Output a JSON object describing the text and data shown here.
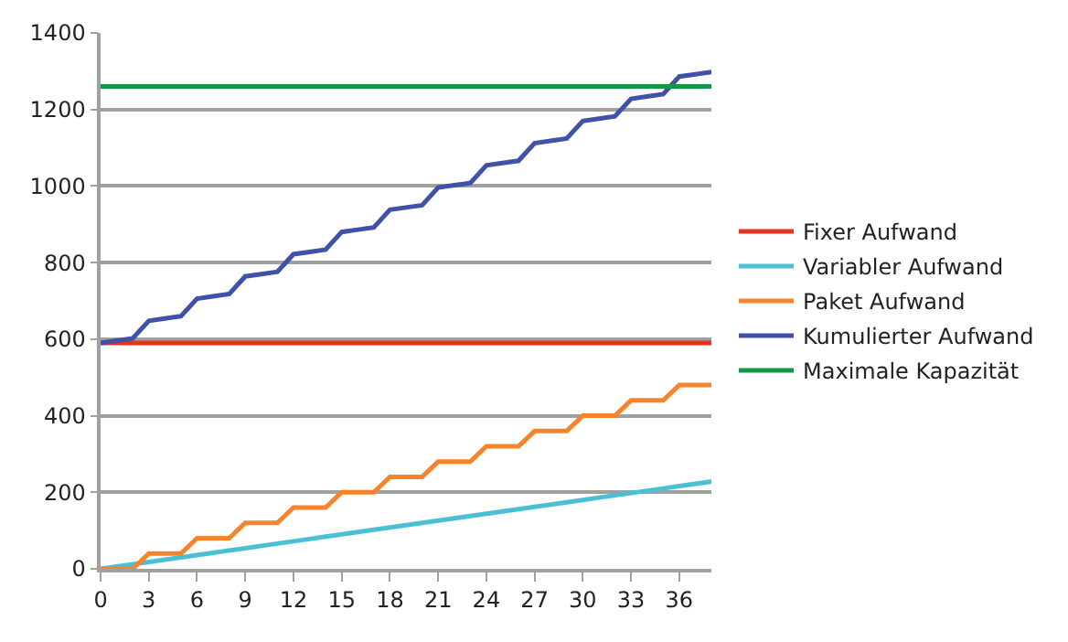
{
  "chart_data": {
    "type": "line",
    "x": [
      0,
      1,
      2,
      3,
      4,
      5,
      6,
      7,
      8,
      9,
      10,
      11,
      12,
      13,
      14,
      15,
      16,
      17,
      18,
      19,
      20,
      21,
      22,
      23,
      24,
      25,
      26,
      27,
      28,
      29,
      30,
      31,
      32,
      33,
      34,
      35,
      36,
      37,
      38
    ],
    "series": [
      {
        "name": "Fixer Aufwand",
        "color": "#e8321e",
        "values": [
          590,
          590,
          590,
          590,
          590,
          590,
          590,
          590,
          590,
          590,
          590,
          590,
          590,
          590,
          590,
          590,
          590,
          590,
          590,
          590,
          590,
          590,
          590,
          590,
          590,
          590,
          590,
          590,
          590,
          590,
          590,
          590,
          590,
          590,
          590,
          590,
          590,
          590,
          590
        ]
      },
      {
        "name": "Variabler Aufwand",
        "color": "#4bbfd6",
        "values": [
          0,
          6,
          12,
          18,
          24,
          30,
          36,
          42,
          48,
          54,
          60,
          66,
          72,
          78,
          84,
          90,
          96,
          102,
          108,
          114,
          120,
          126,
          132,
          138,
          144,
          150,
          156,
          162,
          168,
          174,
          180,
          186,
          192,
          198,
          204,
          210,
          216,
          222,
          228
        ]
      },
      {
        "name": "Paket Aufwand",
        "color": "#f7842a",
        "values": [
          0,
          0,
          0,
          40,
          40,
          40,
          80,
          80,
          80,
          120,
          120,
          120,
          160,
          160,
          160,
          200,
          200,
          200,
          240,
          240,
          240,
          280,
          280,
          280,
          320,
          320,
          320,
          360,
          360,
          360,
          400,
          400,
          400,
          440,
          440,
          440,
          480,
          480,
          480
        ]
      },
      {
        "name": "Kumulierter Aufwand",
        "color": "#3f51a8",
        "values": [
          590,
          596,
          602,
          648,
          654,
          660,
          706,
          712,
          718,
          764,
          770,
          776,
          822,
          828,
          834,
          880,
          886,
          892,
          938,
          944,
          950,
          996,
          1002,
          1008,
          1054,
          1060,
          1066,
          1112,
          1118,
          1124,
          1170,
          1176,
          1182,
          1228,
          1234,
          1240,
          1286,
          1292,
          1298
        ]
      },
      {
        "name": "Maximale Kapazität",
        "color": "#119946",
        "values": [
          1260,
          1260,
          1260,
          1260,
          1260,
          1260,
          1260,
          1260,
          1260,
          1260,
          1260,
          1260,
          1260,
          1260,
          1260,
          1260,
          1260,
          1260,
          1260,
          1260,
          1260,
          1260,
          1260,
          1260,
          1260,
          1260,
          1260,
          1260,
          1260,
          1260,
          1260,
          1260,
          1260,
          1260,
          1260,
          1260,
          1260,
          1260,
          1260
        ]
      }
    ],
    "xlim": [
      0,
      38
    ],
    "xticks": [
      0,
      3,
      6,
      9,
      12,
      15,
      18,
      21,
      24,
      27,
      30,
      33,
      36
    ],
    "ylim": [
      0,
      1400
    ],
    "yticks": [
      0,
      200,
      400,
      600,
      800,
      1000,
      1200,
      1400
    ],
    "grid": "y",
    "legend": "right",
    "marker": "none",
    "line_style": "solid"
  }
}
